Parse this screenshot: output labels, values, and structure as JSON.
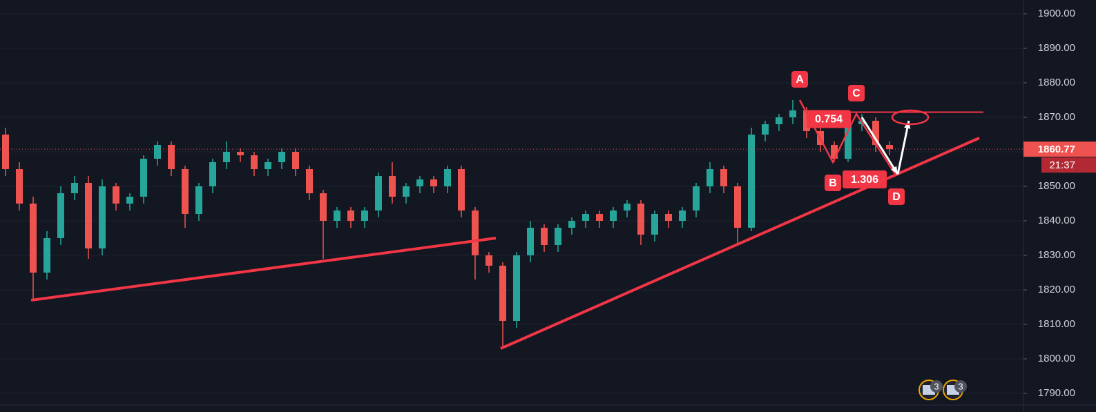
{
  "chart_data": {
    "type": "candlestick",
    "up_color": "#26a69a",
    "down_color": "#ef5350",
    "grid": true,
    "ylim": [
      1784.6,
      1904
    ],
    "yticks": [
      {
        "value": 1790,
        "label": "1790.00"
      },
      {
        "value": 1800,
        "label": "1800.00"
      },
      {
        "value": 1810,
        "label": "1810.00"
      },
      {
        "value": 1820,
        "label": "1820.00"
      },
      {
        "value": 1830,
        "label": "1830.00"
      },
      {
        "value": 1840,
        "label": "1840.00"
      },
      {
        "value": 1850,
        "label": "1850.00"
      },
      {
        "value": 1860,
        "label": "1860.00"
      },
      {
        "value": 1870,
        "label": "1870.00"
      },
      {
        "value": 1880,
        "label": "1880.00"
      },
      {
        "value": 1890,
        "label": "1890.00"
      },
      {
        "value": 1900,
        "label": "1900.00"
      }
    ],
    "open": [
      1865,
      1855,
      1845,
      1825,
      1835,
      1848,
      1851,
      1832,
      1850,
      1845,
      1847,
      1858,
      1862,
      1855,
      1842,
      1850,
      1857,
      1860,
      1859,
      1855,
      1857,
      1860,
      1855,
      1848,
      1840,
      1843,
      1840,
      1843,
      1853,
      1847,
      1850,
      1852,
      1850,
      1855,
      1843,
      1830,
      1827,
      1811,
      1830,
      1838,
      1833,
      1838,
      1840,
      1842,
      1840,
      1843,
      1845,
      1836,
      1842,
      1840,
      1843,
      1850,
      1855,
      1850,
      1838,
      1865,
      1868,
      1870,
      1872,
      1866,
      1862,
      1858,
      1868,
      1869,
      1862
    ],
    "high": [
      1867,
      1857,
      1847,
      1837,
      1850,
      1853,
      1853,
      1852,
      1851,
      1848,
      1859,
      1863,
      1863,
      1856,
      1851,
      1858,
      1863,
      1861,
      1860,
      1858,
      1861,
      1861,
      1856,
      1849,
      1844,
      1844,
      1844,
      1854,
      1857,
      1851,
      1853,
      1853,
      1856,
      1856,
      1844,
      1831,
      1828,
      1831,
      1840,
      1839,
      1839,
      1841,
      1843,
      1843,
      1844,
      1846,
      1846,
      1843,
      1843,
      1844,
      1851,
      1857,
      1856,
      1851,
      1867,
      1869,
      1871,
      1875,
      1873,
      1867,
      1863,
      1869,
      1871,
      1870,
      1863
    ],
    "low": [
      1853,
      1843,
      1817,
      1823,
      1833,
      1846,
      1829,
      1830,
      1843,
      1843,
      1845,
      1856,
      1853,
      1838,
      1840,
      1848,
      1855,
      1857,
      1853,
      1853,
      1855,
      1853,
      1846,
      1829,
      1838,
      1838,
      1838,
      1841,
      1845,
      1845,
      1848,
      1848,
      1848,
      1841,
      1823,
      1825,
      1803,
      1809,
      1828,
      1831,
      1831,
      1836,
      1838,
      1838,
      1838,
      1841,
      1833,
      1834,
      1838,
      1838,
      1841,
      1848,
      1848,
      1833,
      1837,
      1863,
      1866,
      1868,
      1864,
      1860,
      1857,
      1857,
      1866,
      1860,
      1859
    ],
    "close": [
      1855,
      1845,
      1825,
      1835,
      1848,
      1851,
      1832,
      1850,
      1845,
      1847,
      1858,
      1862,
      1855,
      1842,
      1850,
      1857,
      1860,
      1859,
      1855,
      1857,
      1860,
      1855,
      1848,
      1840,
      1843,
      1840,
      1843,
      1853,
      1847,
      1850,
      1852,
      1850,
      1855,
      1843,
      1830,
      1827,
      1811,
      1830,
      1838,
      1833,
      1838,
      1840,
      1842,
      1840,
      1843,
      1845,
      1836,
      1842,
      1840,
      1843,
      1850,
      1855,
      1850,
      1838,
      1865,
      1868,
      1870,
      1872,
      1866,
      1862,
      1858,
      1868,
      1869,
      1862,
      1860.77
    ],
    "last_price": 1860.77,
    "countdown": "21:37",
    "trendlines": [
      {
        "color": "#f23645",
        "x": [
          1.85,
          35.5
        ],
        "y": [
          1817,
          1835
        ]
      },
      {
        "color": "#f23645",
        "x": [
          35.85,
          70.5
        ],
        "y": [
          1803,
          1864
        ]
      },
      {
        "color": "#f23645",
        "x": [
          61,
          70.8
        ],
        "y": [
          1871.5,
          1871.5
        ]
      }
    ],
    "pattern": {
      "color": "#f23645",
      "points": [
        {
          "label": "A",
          "x": 57.5,
          "y": 1875
        },
        {
          "label": "B",
          "x": 59.9,
          "y": 1857
        },
        {
          "label": "C",
          "x": 61.6,
          "y": 1871
        },
        {
          "label": "D",
          "x": 64.5,
          "y": 1853
        }
      ],
      "ratios": [
        {
          "label": "0.754",
          "x": 59.6,
          "y": 1869.5
        },
        {
          "label": "1.306",
          "x": 62.2,
          "y": 1852
        }
      ]
    },
    "arrows": [
      {
        "color": "#ffffff",
        "x": [
          62.0,
          64.6
        ],
        "y": [
          1870,
          1853.5
        ]
      },
      {
        "color": "#ffffff",
        "x": [
          64.6,
          65.4
        ],
        "y": [
          1853.5,
          1869
        ]
      }
    ],
    "target": {
      "color": "#f23645",
      "x": 65.5,
      "y": 1870
    },
    "events": [
      "3",
      "3"
    ]
  }
}
